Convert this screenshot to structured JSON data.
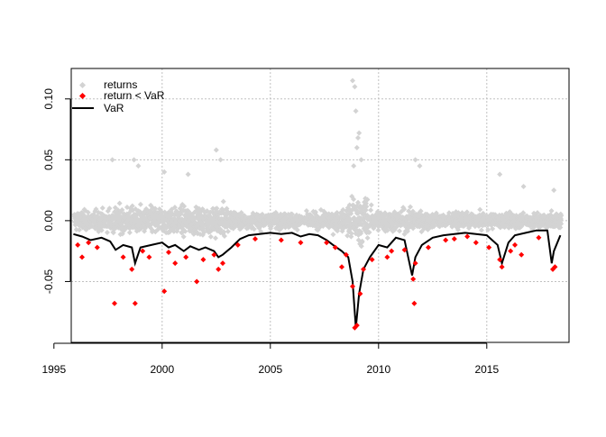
{
  "chart_data": {
    "type": "scatter",
    "title": "",
    "xlabel": "",
    "ylabel": "",
    "xlim": [
      1995.8,
      2018.8
    ],
    "ylim": [
      -0.1,
      0.125
    ],
    "x_ticks": [
      1995,
      2000,
      2005,
      2010,
      2015
    ],
    "x_tick_labels": [
      "1995",
      "2000",
      "2005",
      "2010",
      "2015"
    ],
    "y_ticks": [
      -0.05,
      0.0,
      0.05,
      0.1
    ],
    "y_tick_labels": [
      "-0.05",
      "0.00",
      "0.05",
      "0.10"
    ],
    "grid": true,
    "legend_position": "top-left",
    "legend": [
      "returns",
      "return < VaR",
      "VaR"
    ],
    "colors": {
      "returns": "#d3d3d3",
      "breach": "#ff0000",
      "var": "#000000",
      "grid": "#c0c0c0"
    },
    "var_series": {
      "name": "VaR",
      "x": [
        1995.9,
        1996.3,
        1996.7,
        1997.2,
        1997.6,
        1997.85,
        1998.2,
        1998.6,
        1998.75,
        1999.0,
        1999.5,
        2000.0,
        2000.3,
        2000.6,
        2001.0,
        2001.3,
        2001.7,
        2002.0,
        2002.4,
        2002.6,
        2002.8,
        2003.2,
        2003.6,
        2004.0,
        2004.5,
        2005.0,
        2005.5,
        2006.0,
        2006.4,
        2006.8,
        2007.2,
        2007.6,
        2007.9,
        2008.3,
        2008.6,
        2008.8,
        2008.95,
        2009.1,
        2009.3,
        2009.6,
        2010.0,
        2010.4,
        2010.8,
        2011.2,
        2011.55,
        2011.7,
        2012.0,
        2012.5,
        2013.0,
        2013.5,
        2014.0,
        2014.5,
        2015.0,
        2015.5,
        2015.7,
        2016.0,
        2016.3,
        2016.8,
        2017.3,
        2017.8,
        2018.0,
        2018.1,
        2018.4
      ],
      "y": [
        -0.011,
        -0.013,
        -0.016,
        -0.014,
        -0.017,
        -0.024,
        -0.02,
        -0.022,
        -0.035,
        -0.022,
        -0.02,
        -0.018,
        -0.022,
        -0.02,
        -0.025,
        -0.021,
        -0.024,
        -0.022,
        -0.025,
        -0.03,
        -0.028,
        -0.022,
        -0.015,
        -0.012,
        -0.011,
        -0.01,
        -0.011,
        -0.01,
        -0.013,
        -0.011,
        -0.012,
        -0.016,
        -0.02,
        -0.025,
        -0.03,
        -0.05,
        -0.088,
        -0.06,
        -0.04,
        -0.03,
        -0.02,
        -0.022,
        -0.014,
        -0.016,
        -0.045,
        -0.03,
        -0.02,
        -0.014,
        -0.012,
        -0.011,
        -0.01,
        -0.011,
        -0.012,
        -0.02,
        -0.035,
        -0.018,
        -0.012,
        -0.01,
        -0.008,
        -0.008,
        -0.035,
        -0.025,
        -0.012
      ]
    },
    "breach_points": {
      "name": "return < VaR",
      "x": [
        1996.1,
        1996.3,
        1996.6,
        1997.0,
        1997.8,
        1998.2,
        1998.6,
        1998.75,
        1999.1,
        1999.4,
        2000.1,
        2000.3,
        2000.6,
        2001.1,
        2001.6,
        2001.9,
        2002.4,
        2002.6,
        2002.8,
        2003.5,
        2004.3,
        2005.5,
        2006.4,
        2007.6,
        2008.0,
        2008.3,
        2008.5,
        2008.8,
        2008.9,
        2009.0,
        2009.15,
        2009.3,
        2009.7,
        2010.4,
        2010.6,
        2011.2,
        2011.6,
        2011.65,
        2011.7,
        2012.3,
        2013.1,
        2013.5,
        2014.1,
        2014.5,
        2015.1,
        2015.6,
        2015.7,
        2016.1,
        2016.3,
        2016.6,
        2017.4,
        2018.05,
        2018.15
      ],
      "y": [
        -0.02,
        -0.03,
        -0.018,
        -0.022,
        -0.068,
        -0.03,
        -0.04,
        -0.068,
        -0.025,
        -0.03,
        -0.058,
        -0.026,
        -0.035,
        -0.03,
        -0.05,
        -0.032,
        -0.028,
        -0.04,
        -0.035,
        -0.02,
        -0.015,
        -0.016,
        -0.018,
        -0.018,
        -0.022,
        -0.038,
        -0.028,
        -0.054,
        -0.088,
        -0.086,
        -0.06,
        -0.04,
        -0.032,
        -0.03,
        -0.025,
        -0.024,
        -0.048,
        -0.068,
        -0.035,
        -0.022,
        -0.016,
        -0.015,
        -0.013,
        -0.018,
        -0.022,
        -0.032,
        -0.038,
        -0.025,
        -0.02,
        -0.028,
        -0.014,
        -0.04,
        -0.038
      ]
    },
    "returns_outliers": {
      "name": "returns",
      "x": [
        1997.7,
        1998.7,
        1998.9,
        2000.1,
        2001.2,
        2002.5,
        2002.7,
        2008.8,
        2008.9,
        2008.95,
        2009.05,
        2009.1,
        2009.2,
        2008.85,
        2009.0,
        2011.7,
        2011.9,
        2015.6,
        2016.7,
        2018.1
      ],
      "y": [
        0.05,
        0.05,
        0.045,
        0.04,
        0.038,
        0.058,
        0.05,
        0.115,
        0.11,
        0.09,
        0.068,
        0.072,
        0.05,
        0.045,
        0.06,
        0.05,
        0.045,
        0.038,
        0.028,
        0.025
      ]
    }
  }
}
